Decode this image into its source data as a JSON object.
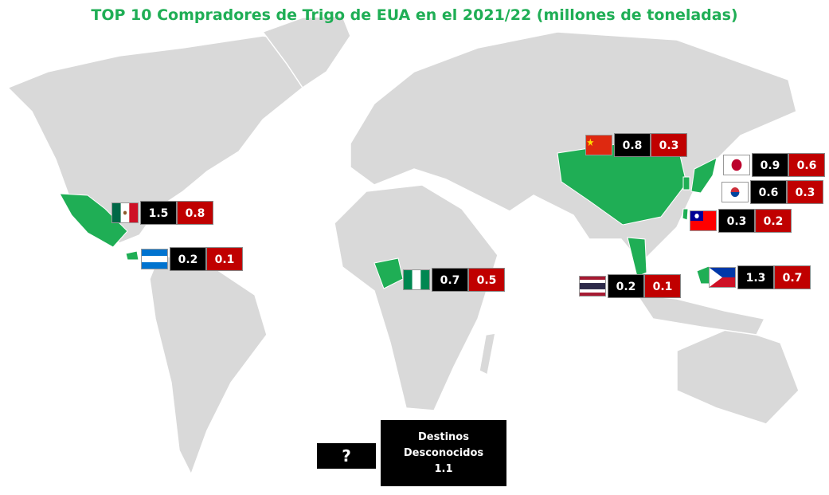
{
  "title": "TOP 10 Compradores de Trigo de EUA en el 2021/22 (millones de toneladas)",
  "buyers": [
    [
      0.8,
      0.3
    ],
    [
      0.9,
      0.6
    ],
    [
      0.6,
      0.3
    ],
    [
      0.3,
      0.2
    ],
    [
      1.5,
      0.8
    ],
    [
      0.2,
      0.1
    ],
    [
      0.7,
      0.5
    ],
    [
      0.2,
      0.1
    ],
    [
      1.3,
      0.7
    ]
  ],
  "unknown": {
    "symbol": "?",
    "label": "Destinos Desconocidos",
    "value": 1.1
  }
}
